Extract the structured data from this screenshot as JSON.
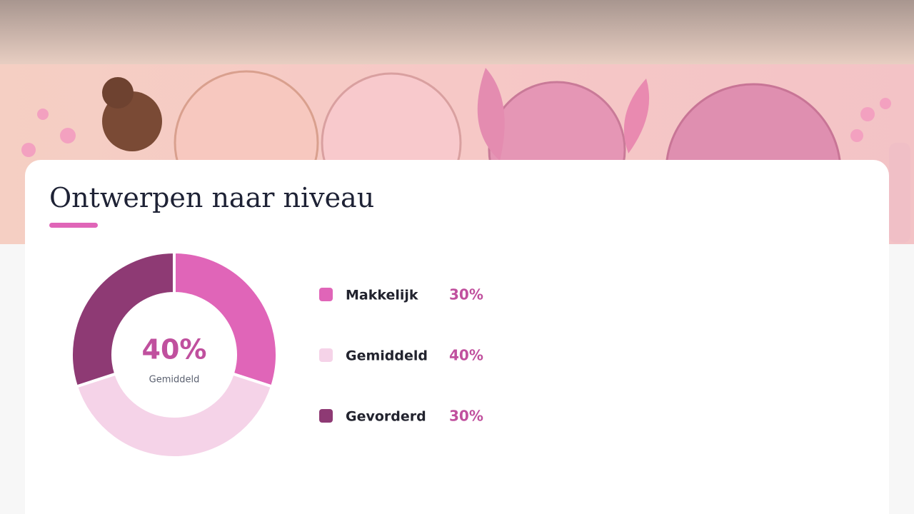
{
  "chart_data": {
    "type": "pie",
    "donut": true,
    "title": "Ontwerpen naar niveau",
    "categories": [
      "Makkelijk",
      "Gemiddeld",
      "Gevorderd"
    ],
    "values": [
      30,
      40,
      30
    ],
    "value_labels": [
      "30%",
      "40%",
      "30%"
    ],
    "colors": [
      "#e065b8",
      "#f5d3e8",
      "#8e3a74"
    ]
  }
}
